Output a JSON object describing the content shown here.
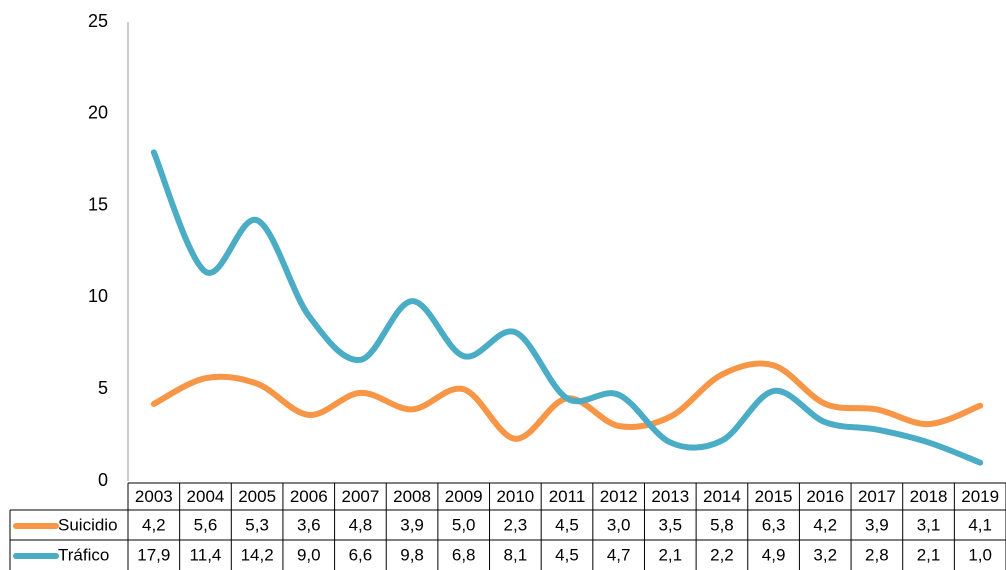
{
  "chart_data": {
    "type": "line",
    "categories": [
      "2003",
      "2004",
      "2005",
      "2006",
      "2007",
      "2008",
      "2009",
      "2010",
      "2011",
      "2012",
      "2013",
      "2014",
      "2015",
      "2016",
      "2017",
      "2018",
      "2019"
    ],
    "series": [
      {
        "name": "Suicidio",
        "color": "#f79646",
        "values": [
          4.2,
          5.6,
          5.3,
          3.6,
          4.8,
          3.9,
          5.0,
          2.3,
          4.5,
          3.0,
          3.5,
          5.8,
          6.3,
          4.2,
          3.9,
          3.1,
          4.1
        ],
        "value_labels": [
          "4,2",
          "5,6",
          "5,3",
          "3,6",
          "4,8",
          "3,9",
          "5,0",
          "2,3",
          "4,5",
          "3,0",
          "3,5",
          "5,8",
          "6,3",
          "4,2",
          "3,9",
          "3,1",
          "4,1"
        ]
      },
      {
        "name": "Tráfico",
        "color": "#4bacc6",
        "values": [
          17.9,
          11.4,
          14.2,
          9.0,
          6.6,
          9.8,
          6.8,
          8.1,
          4.5,
          4.7,
          2.1,
          2.2,
          4.9,
          3.2,
          2.8,
          2.1,
          1.0
        ],
        "value_labels": [
          "17,9",
          "11,4",
          "14,2",
          "9,0",
          "6,6",
          "9,8",
          "6,8",
          "8,1",
          "4,5",
          "4,7",
          "2,1",
          "2,2",
          "4,9",
          "3,2",
          "2,8",
          "2,1",
          "1,0"
        ]
      }
    ],
    "ylim": [
      0,
      25
    ],
    "yticks": [
      0,
      5,
      10,
      15,
      20,
      25
    ],
    "grid": false
  }
}
